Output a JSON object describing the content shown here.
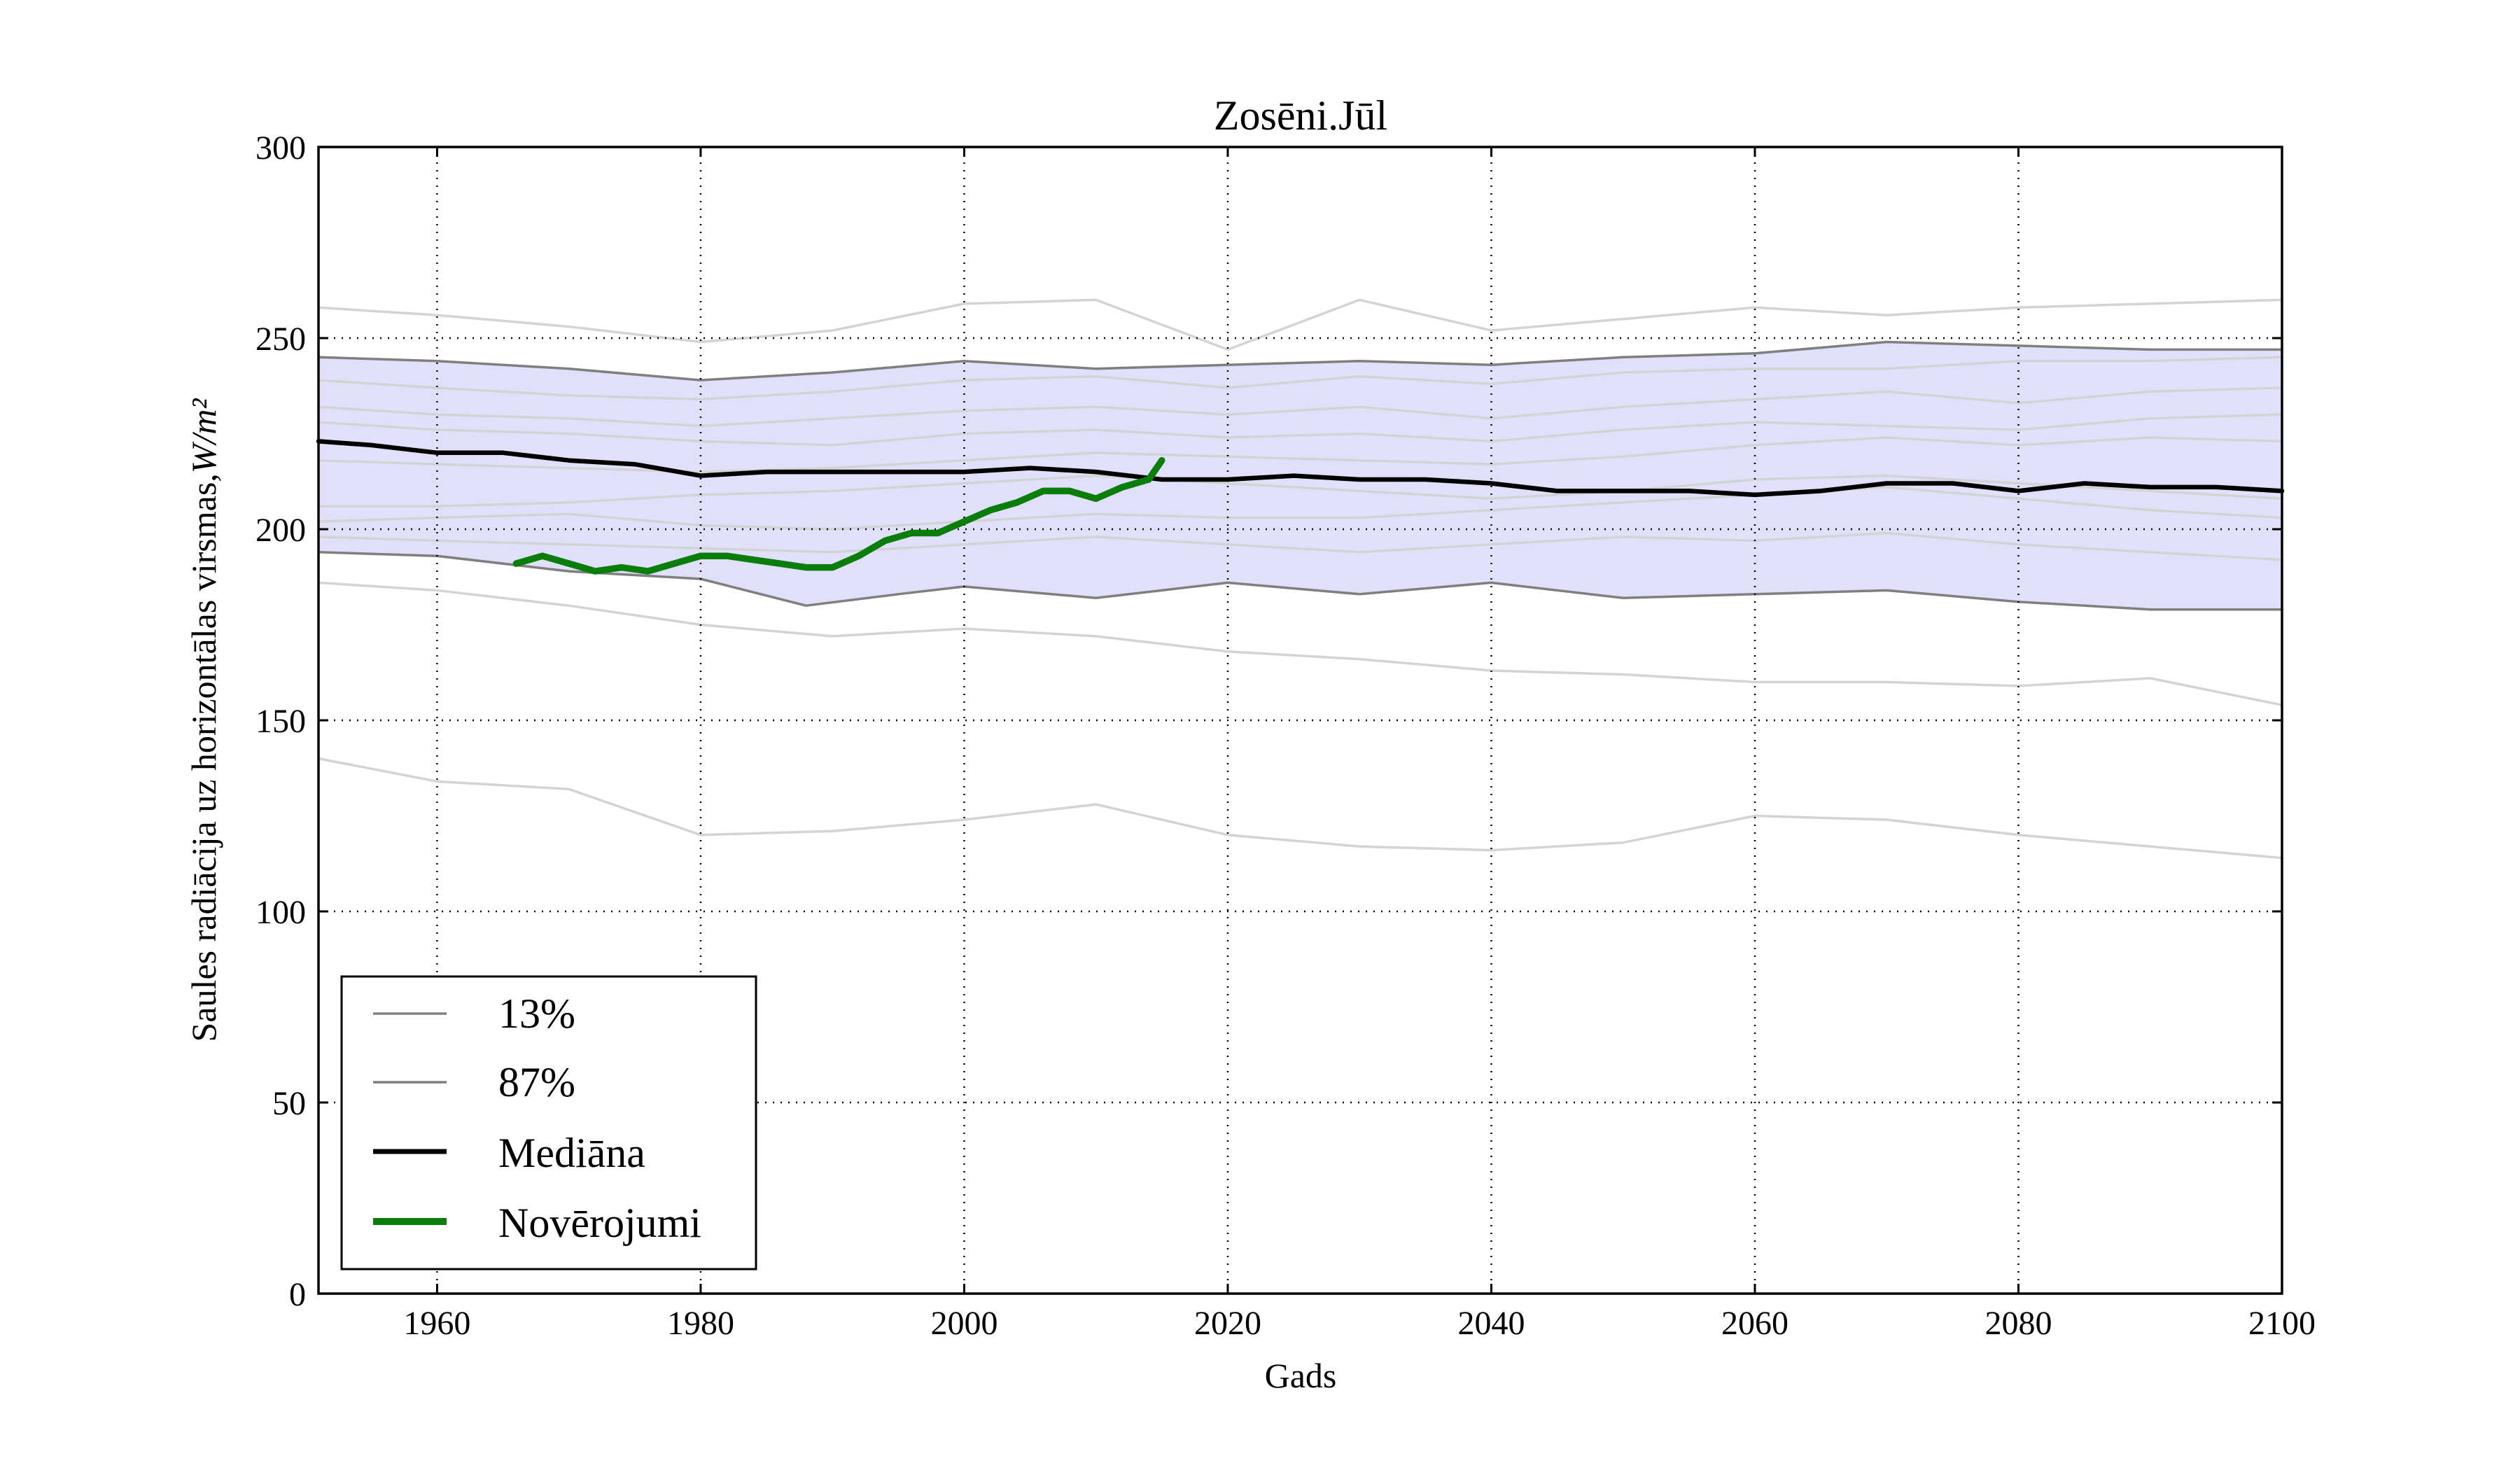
{
  "chart_data": {
    "type": "line",
    "title": "Zosēni.Jūl",
    "xlabel": "Gads",
    "ylabel": "Saules radiācija uz horizontālas virsmas,",
    "ylabel_unit": "W/m²",
    "xlim": [
      1951,
      2100
    ],
    "ylim": [
      0,
      300
    ],
    "xticks": [
      1960,
      1980,
      2000,
      2020,
      2040,
      2060,
      2080,
      2100
    ],
    "yticks": [
      0,
      50,
      100,
      150,
      200,
      250,
      300
    ],
    "grid": true,
    "legend_position": "lower-left",
    "band": {
      "fill_color": "#e0e0fb",
      "lower_series": "13%",
      "upper_series": "87%"
    },
    "colors": {
      "models": "#d3d3d3",
      "percentile": "#7f7f7f",
      "median": "#000000",
      "observations": "#0a7d0a",
      "band": "#e0e0fb"
    },
    "series": [
      {
        "name": "13%",
        "role": "percentile",
        "x": [
          1951,
          1960,
          1970,
          1980,
          1988,
          1995,
          2000,
          2010,
          2020,
          2030,
          2040,
          2050,
          2060,
          2070,
          2080,
          2090,
          2100
        ],
        "y": [
          194,
          193,
          189,
          187,
          180,
          183,
          185,
          182,
          186,
          183,
          186,
          182,
          183,
          184,
          181,
          179,
          179
        ]
      },
      {
        "name": "87%",
        "role": "percentile",
        "x": [
          1951,
          1960,
          1970,
          1980,
          1990,
          2000,
          2010,
          2020,
          2030,
          2040,
          2050,
          2060,
          2070,
          2080,
          2090,
          2100
        ],
        "y": [
          245,
          244,
          242,
          239,
          241,
          244,
          242,
          243,
          244,
          243,
          245,
          246,
          249,
          248,
          247,
          247
        ]
      },
      {
        "name": "Mediāna",
        "role": "median",
        "x": [
          1951,
          1955,
          1960,
          1965,
          1970,
          1975,
          1980,
          1985,
          1990,
          1995,
          2000,
          2005,
          2010,
          2015,
          2020,
          2025,
          2030,
          2035,
          2040,
          2045,
          2050,
          2055,
          2060,
          2065,
          2070,
          2075,
          2080,
          2085,
          2090,
          2095,
          2100
        ],
        "y": [
          223,
          222,
          220,
          220,
          218,
          217,
          214,
          215,
          215,
          215,
          215,
          216,
          215,
          213,
          213,
          214,
          213,
          213,
          212,
          210,
          210,
          210,
          209,
          210,
          212,
          212,
          210,
          212,
          211,
          211,
          210
        ]
      },
      {
        "name": "Novērojumi",
        "role": "observations",
        "x": [
          1966,
          1968,
          1970,
          1972,
          1974,
          1976,
          1978,
          1980,
          1982,
          1984,
          1986,
          1988,
          1990,
          1992,
          1994,
          1996,
          1998,
          2000,
          2002,
          2004,
          2006,
          2008,
          2010,
          2012,
          2014,
          2015
        ],
        "y": [
          191,
          193,
          191,
          189,
          190,
          189,
          191,
          193,
          193,
          192,
          191,
          190,
          190,
          193,
          197,
          199,
          199,
          202,
          205,
          207,
          210,
          210,
          208,
          211,
          213,
          218
        ]
      },
      {
        "name": "",
        "role": "model",
        "x": [
          1951,
          1960,
          1970,
          1980,
          1990,
          2000,
          2010,
          2020,
          2030,
          2040,
          2050,
          2060,
          2070,
          2080,
          2090,
          2100
        ],
        "y": [
          258,
          256,
          253,
          249,
          252,
          259,
          260,
          247,
          260,
          252,
          255,
          258,
          256,
          258,
          259,
          260
        ]
      },
      {
        "name": "",
        "role": "model",
        "x": [
          1951,
          1960,
          1970,
          1980,
          1990,
          2000,
          2010,
          2020,
          2030,
          2040,
          2050,
          2060,
          2070,
          2080,
          2090,
          2100
        ],
        "y": [
          239,
          237,
          235,
          234,
          236,
          239,
          240,
          237,
          240,
          238,
          241,
          242,
          242,
          244,
          244,
          245
        ]
      },
      {
        "name": "",
        "role": "model",
        "x": [
          1951,
          1960,
          1970,
          1980,
          1990,
          2000,
          2010,
          2020,
          2030,
          2040,
          2050,
          2060,
          2070,
          2080,
          2090,
          2100
        ],
        "y": [
          232,
          230,
          229,
          227,
          229,
          231,
          232,
          230,
          232,
          229,
          232,
          234,
          236,
          233,
          236,
          237
        ]
      },
      {
        "name": "",
        "role": "model",
        "x": [
          1951,
          1960,
          1970,
          1980,
          1990,
          2000,
          2010,
          2020,
          2030,
          2040,
          2050,
          2060,
          2070,
          2080,
          2090,
          2100
        ],
        "y": [
          228,
          226,
          225,
          223,
          222,
          225,
          226,
          224,
          225,
          223,
          226,
          228,
          227,
          226,
          229,
          230
        ]
      },
      {
        "name": "",
        "role": "model",
        "x": [
          1951,
          1960,
          1970,
          1980,
          1990,
          2000,
          2010,
          2020,
          2030,
          2040,
          2050,
          2060,
          2070,
          2080,
          2090,
          2100
        ],
        "y": [
          218,
          217,
          216,
          215,
          216,
          218,
          220,
          219,
          218,
          217,
          219,
          222,
          224,
          222,
          224,
          223
        ]
      },
      {
        "name": "",
        "role": "model",
        "x": [
          1951,
          1960,
          1970,
          1980,
          1990,
          2000,
          2010,
          2020,
          2030,
          2040,
          2050,
          2060,
          2070,
          2080,
          2090,
          2100
        ],
        "y": [
          206,
          206,
          207,
          209,
          210,
          212,
          214,
          212,
          210,
          208,
          210,
          213,
          214,
          212,
          210,
          208
        ]
      },
      {
        "name": "",
        "role": "model",
        "x": [
          1951,
          1960,
          1970,
          1980,
          1990,
          2000,
          2010,
          2020,
          2030,
          2040,
          2050,
          2060,
          2070,
          2080,
          2090,
          2100
        ],
        "y": [
          202,
          203,
          204,
          201,
          200,
          202,
          204,
          203,
          203,
          205,
          207,
          209,
          211,
          208,
          205,
          203
        ]
      },
      {
        "name": "",
        "role": "model",
        "x": [
          1951,
          1960,
          1970,
          1980,
          1990,
          2000,
          2010,
          2020,
          2030,
          2040,
          2050,
          2060,
          2070,
          2080,
          2090,
          2100
        ],
        "y": [
          198,
          197,
          196,
          195,
          194,
          196,
          198,
          196,
          194,
          196,
          198,
          197,
          199,
          196,
          194,
          192
        ]
      },
      {
        "name": "",
        "role": "model",
        "x": [
          1951,
          1960,
          1970,
          1980,
          1990,
          2000,
          2010,
          2020,
          2030,
          2040,
          2050,
          2060,
          2070,
          2080,
          2090,
          2100
        ],
        "y": [
          186,
          184,
          180,
          175,
          172,
          174,
          172,
          168,
          166,
          163,
          162,
          160,
          160,
          159,
          161,
          154
        ]
      },
      {
        "name": "",
        "role": "model",
        "x": [
          1951,
          1960,
          1970,
          1980,
          1990,
          2000,
          2010,
          2020,
          2030,
          2040,
          2050,
          2060,
          2070,
          2080,
          2090,
          2100
        ],
        "y": [
          140,
          134,
          132,
          120,
          121,
          124,
          128,
          120,
          117,
          116,
          118,
          125,
          124,
          120,
          117,
          114
        ]
      }
    ]
  }
}
